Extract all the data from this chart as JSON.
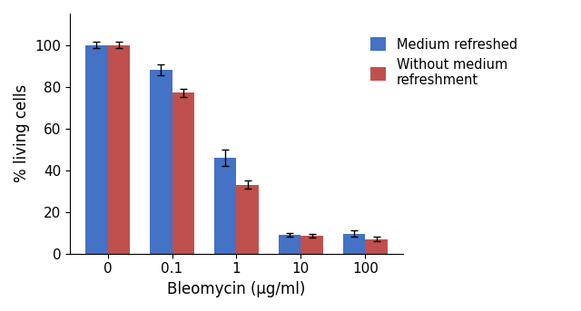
{
  "categories": [
    "0",
    "0.1",
    "1",
    "10",
    "100"
  ],
  "blue_values": [
    100,
    88,
    46,
    9,
    9.5
  ],
  "red_values": [
    100,
    77,
    33,
    8.5,
    7
  ],
  "blue_errors": [
    1.5,
    2.5,
    4,
    1,
    1.5
  ],
  "red_errors": [
    1.5,
    2,
    2,
    1,
    1
  ],
  "blue_color": "#4472C4",
  "red_color": "#C0504D",
  "xlabel": "Bleomycin (μg/ml)",
  "ylabel": "% living cells",
  "ylim": [
    0,
    115
  ],
  "yticks": [
    0,
    20,
    40,
    60,
    80,
    100
  ],
  "legend_labels": [
    "Medium refreshed",
    "Without medium\nrefreshment"
  ],
  "bar_width": 0.35,
  "figsize": [
    6.4,
    3.43
  ],
  "dpi": 100
}
